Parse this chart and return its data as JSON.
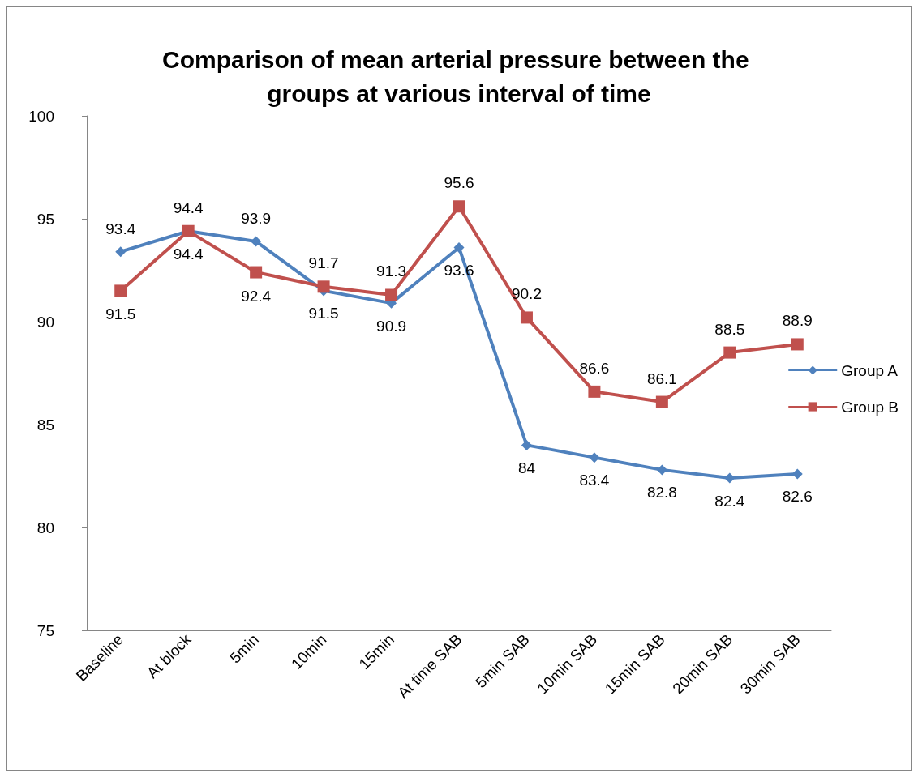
{
  "chart_data": {
    "type": "line",
    "title": "Comparison of mean arterial pressure between the groups at various interval of time",
    "categories": [
      "Baseline",
      "At block",
      "5min",
      "10min",
      "15min",
      "At time SAB",
      "5min SAB",
      "10min SAB",
      "15min SAB",
      "20min SAB",
      "30min SAB"
    ],
    "series": [
      {
        "name": "Group A",
        "color": "#4f81bd",
        "marker": "diamond",
        "values": [
          93.4,
          94.4,
          93.9,
          91.5,
          90.9,
          93.6,
          84,
          83.4,
          82.8,
          82.4,
          82.6
        ]
      },
      {
        "name": "Group B",
        "color": "#c0504d",
        "marker": "square",
        "values": [
          91.5,
          94.4,
          92.4,
          91.7,
          91.3,
          95.6,
          90.2,
          86.6,
          86.1,
          88.5,
          88.9
        ]
      }
    ],
    "ylim": [
      75,
      100
    ],
    "yticks": [
      75,
      80,
      85,
      90,
      95,
      100
    ],
    "grid": false,
    "legend": "right",
    "data_labels": true
  }
}
